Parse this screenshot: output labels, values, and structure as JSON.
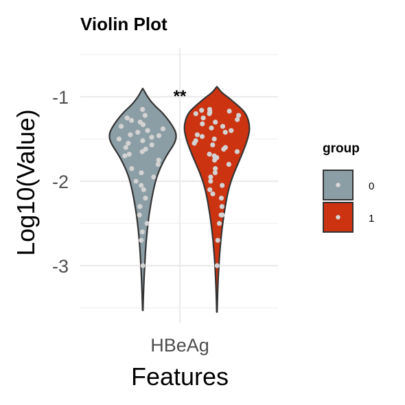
{
  "chart_data": {
    "type": "violin",
    "title": "Violin Plot",
    "xlabel": "Features",
    "ylabel": "Log10(Value)",
    "categories": [
      "HBeAg"
    ],
    "ylim": [
      -3.55,
      -0.45
    ],
    "y_ticks": [
      -1,
      -2,
      -3
    ],
    "y_tick_labels": [
      "-1",
      "-2",
      "-3"
    ],
    "grid": true,
    "significance": "**",
    "legend": {
      "title": "group",
      "position": "right",
      "entries": [
        "0",
        "1"
      ]
    },
    "colors": {
      "0": "#8c9ea5",
      "1": "#cc3311"
    },
    "series": [
      {
        "name": "0",
        "min": -3.53,
        "max": -0.9,
        "density": [
          [
            -3.53,
            0.005
          ],
          [
            -3.3,
            0.02
          ],
          [
            -3.0,
            0.05
          ],
          [
            -2.7,
            0.09
          ],
          [
            -2.4,
            0.16
          ],
          [
            -2.1,
            0.28
          ],
          [
            -1.9,
            0.4
          ],
          [
            -1.7,
            0.62
          ],
          [
            -1.55,
            0.85
          ],
          [
            -1.45,
            0.9
          ],
          [
            -1.35,
            0.8
          ],
          [
            -1.2,
            0.55
          ],
          [
            -1.1,
            0.3
          ],
          [
            -1.0,
            0.12
          ],
          [
            -0.9,
            0.005
          ]
        ],
        "points": [
          -1.15,
          -1.22,
          -1.25,
          -1.28,
          -1.3,
          -1.33,
          -1.35,
          -1.38,
          -1.4,
          -1.42,
          -1.45,
          -1.46,
          -1.48,
          -1.5,
          -1.52,
          -1.55,
          -1.57,
          -1.6,
          -1.62,
          -1.65,
          -1.68,
          -1.7,
          -1.75,
          -1.8,
          -1.85,
          -1.9,
          -1.95,
          -2.0,
          -2.05,
          -2.1,
          -2.2,
          -2.3,
          -2.4,
          -2.5,
          -2.6,
          -2.7,
          -3.0
        ]
      },
      {
        "name": "1",
        "min": -3.55,
        "max": -0.88,
        "density": [
          [
            -3.55,
            0.005
          ],
          [
            -3.3,
            0.02
          ],
          [
            -3.0,
            0.05
          ],
          [
            -2.7,
            0.1
          ],
          [
            -2.4,
            0.18
          ],
          [
            -2.1,
            0.3
          ],
          [
            -1.9,
            0.45
          ],
          [
            -1.7,
            0.65
          ],
          [
            -1.5,
            0.82
          ],
          [
            -1.35,
            0.88
          ],
          [
            -1.2,
            0.78
          ],
          [
            -1.1,
            0.55
          ],
          [
            -1.0,
            0.28
          ],
          [
            -0.95,
            0.12
          ],
          [
            -0.88,
            0.005
          ]
        ],
        "points": [
          -1.15,
          -1.16,
          -1.17,
          -1.18,
          -1.2,
          -1.2,
          -1.22,
          -1.25,
          -1.27,
          -1.3,
          -1.32,
          -1.35,
          -1.37,
          -1.4,
          -1.42,
          -1.45,
          -1.47,
          -1.5,
          -1.52,
          -1.55,
          -1.57,
          -1.6,
          -1.62,
          -1.65,
          -1.68,
          -1.7,
          -1.72,
          -1.75,
          -1.8,
          -1.85,
          -1.9,
          -1.95,
          -2.0,
          -2.05,
          -2.1,
          -2.15,
          -2.2,
          -2.3,
          -2.4,
          -2.4,
          -2.4,
          -2.5,
          -2.7,
          -3.0
        ]
      }
    ]
  }
}
